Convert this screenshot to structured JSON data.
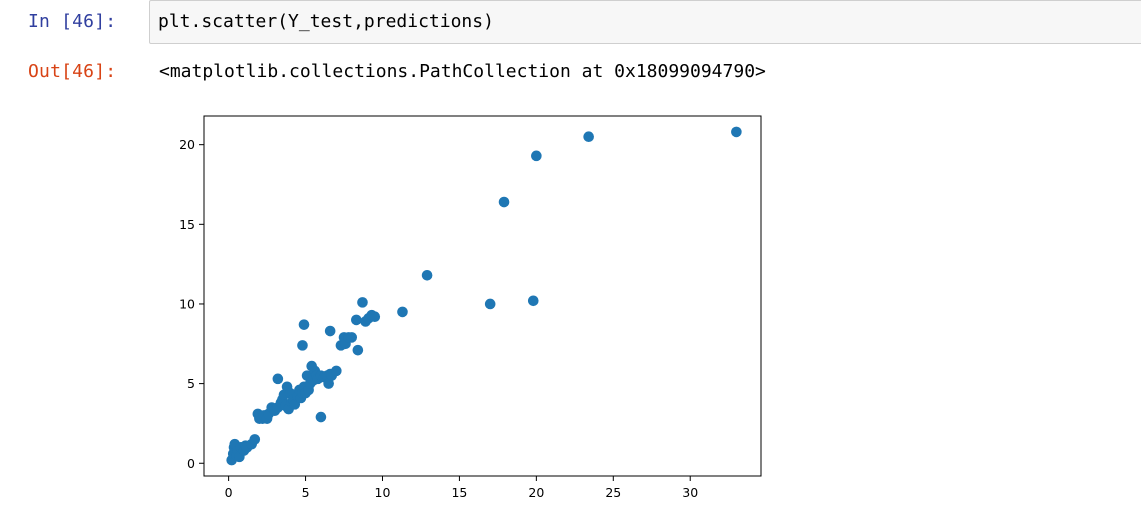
{
  "input_cell": {
    "prompt": "In [46]:",
    "code": "plt.scatter(Y_test,predictions)"
  },
  "output_cell": {
    "prompt": "Out[46]:",
    "text": "<matplotlib.collections.PathCollection at 0x18099094790>"
  },
  "colors": {
    "in_prompt": "#303F9F",
    "out_prompt": "#D84315",
    "marker": "#1f77b4"
  },
  "chart_data": {
    "type": "scatter",
    "title": "",
    "xlabel": "",
    "ylabel": "",
    "xlim": [
      -1.6,
      34.6
    ],
    "ylim": [
      -0.8,
      21.8
    ],
    "x_ticks": [
      0,
      5,
      10,
      15,
      20,
      25,
      30
    ],
    "y_ticks": [
      0,
      5,
      10,
      15,
      20
    ],
    "grid": false,
    "series": [
      {
        "x": [
          0.2,
          0.3,
          0.35,
          0.4,
          0.5,
          0.6,
          0.7,
          0.8,
          1.0,
          1.1,
          1.2,
          1.5,
          1.7,
          1.9,
          2.0,
          2.2,
          2.3,
          2.5,
          2.6,
          2.8,
          3.0,
          3.2,
          3.4,
          3.5,
          3.6,
          3.7,
          3.8,
          3.9,
          4.0,
          4.1,
          4.2,
          4.3,
          4.5,
          4.6,
          4.7,
          4.8,
          4.9,
          5.0,
          5.1,
          5.2,
          5.3,
          5.4,
          5.5,
          5.6,
          5.7,
          5.8,
          6.0,
          6.2,
          6.4,
          6.5,
          6.6,
          6.7,
          7.0,
          7.3,
          7.5,
          7.6,
          7.8,
          8.0,
          8.3,
          8.4,
          8.7,
          8.9,
          9.1,
          9.3,
          9.5,
          11.3,
          12.9,
          17.0,
          17.9,
          19.8,
          20.0,
          23.4,
          33.0,
          4.8,
          4.9,
          6.6,
          3.2,
          6.0
        ],
        "y": [
          0.2,
          0.6,
          1.0,
          1.2,
          0.5,
          0.8,
          0.4,
          1.0,
          0.8,
          1.1,
          1.0,
          1.2,
          1.5,
          3.1,
          2.8,
          2.8,
          3.0,
          2.8,
          3.1,
          3.5,
          3.3,
          3.5,
          3.8,
          4.0,
          4.3,
          3.6,
          4.8,
          3.4,
          4.4,
          3.8,
          4.0,
          3.7,
          4.2,
          4.6,
          4.1,
          4.4,
          4.8,
          4.4,
          5.5,
          4.6,
          5.0,
          6.1,
          5.2,
          5.8,
          5.5,
          5.3,
          5.5,
          5.4,
          5.5,
          5.0,
          5.6,
          5.5,
          5.8,
          7.4,
          7.9,
          7.5,
          7.9,
          7.9,
          9.0,
          7.1,
          10.1,
          8.9,
          9.1,
          9.3,
          9.2,
          9.5,
          11.8,
          10.0,
          16.4,
          10.2,
          19.3,
          20.5,
          20.8,
          7.4,
          8.7,
          8.3,
          5.3,
          2.9
        ]
      }
    ]
  }
}
